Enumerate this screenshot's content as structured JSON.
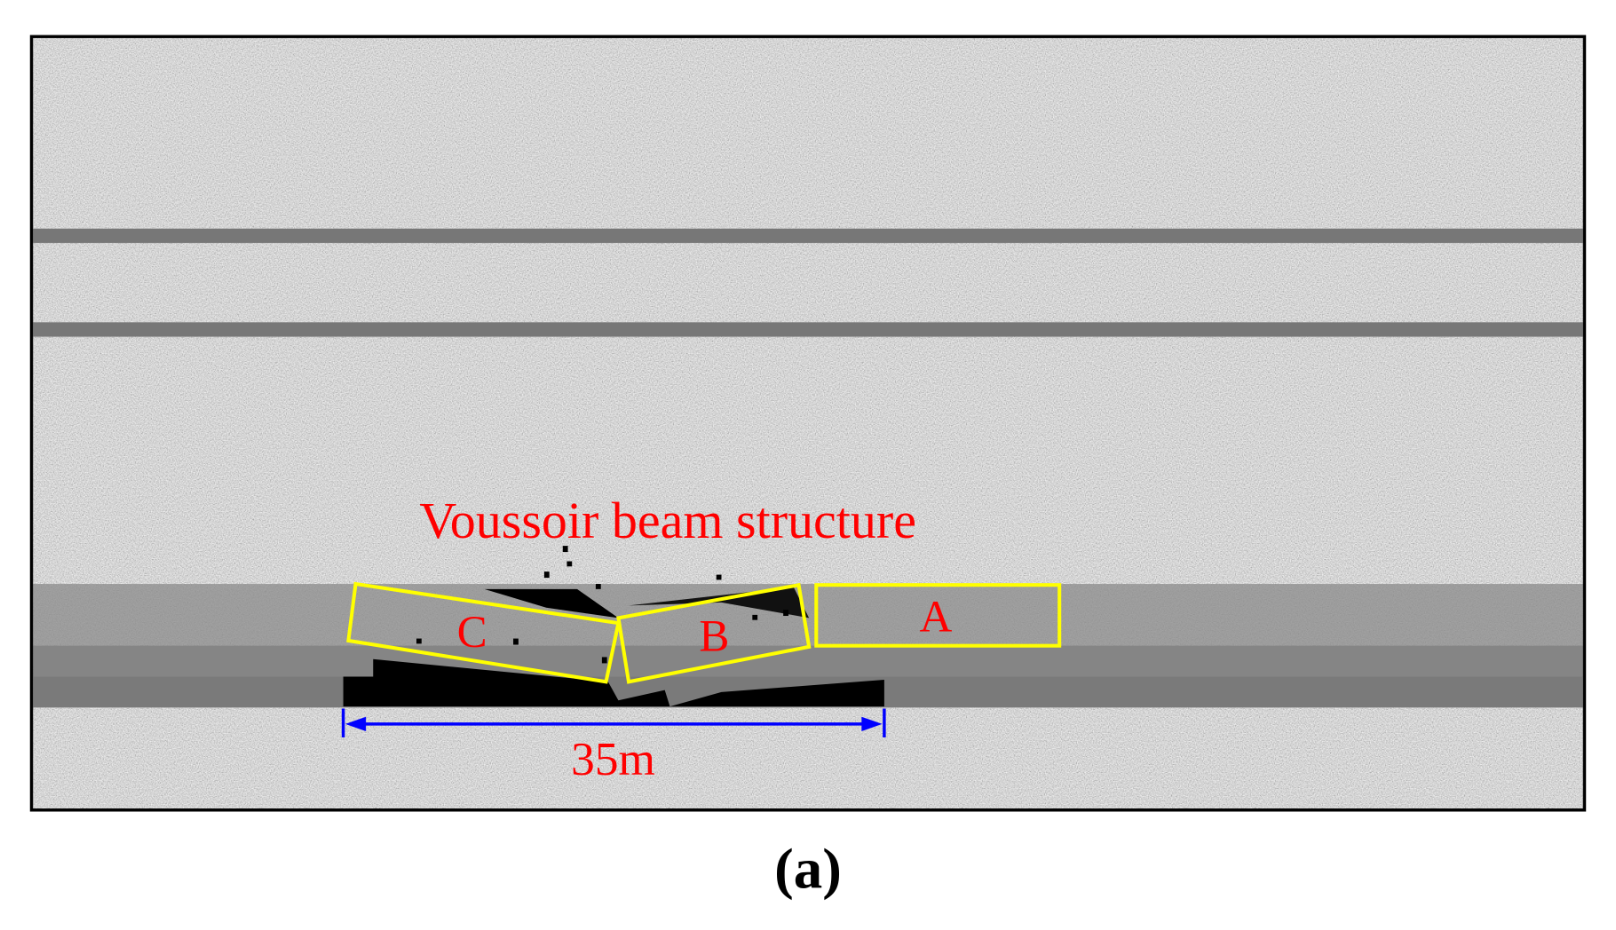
{
  "figure": {
    "label": "(a)",
    "annotation": "Voussoir beam structure",
    "blocks": [
      "C",
      "B",
      "A"
    ],
    "span": "35m"
  }
}
